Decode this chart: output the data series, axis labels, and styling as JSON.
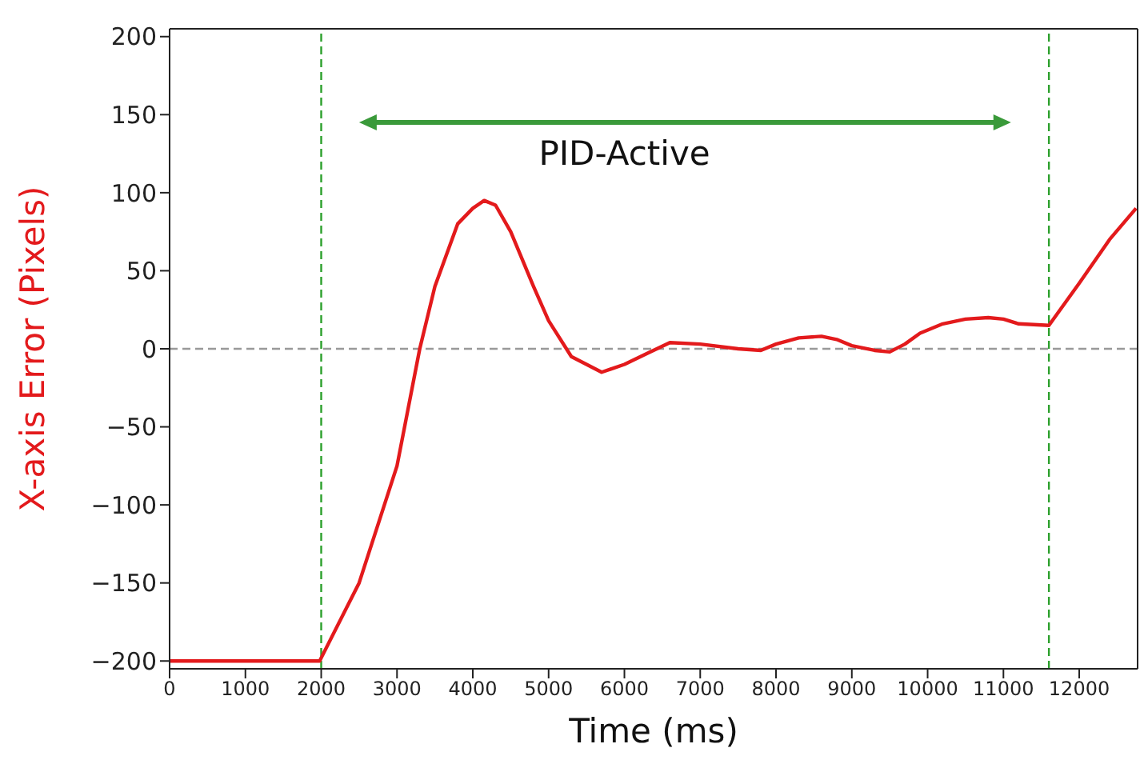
{
  "chart_data": {
    "type": "line",
    "xlabel": "Time (ms)",
    "ylabel": "X-axis Error (Pixels)",
    "x": [
      0,
      1980,
      2000,
      2500,
      3000,
      3300,
      3500,
      3800,
      4000,
      4150,
      4300,
      4500,
      4800,
      5000,
      5300,
      5700,
      6000,
      6300,
      6600,
      7000,
      7500,
      7800,
      8000,
      8300,
      8600,
      8800,
      9000,
      9300,
      9500,
      9700,
      9900,
      10200,
      10500,
      10800,
      11000,
      11200,
      11600,
      12000,
      12400,
      12750
    ],
    "series": [
      {
        "color": "#e31a1c",
        "values": [
          -200,
          -200,
          -198,
          -150,
          -75,
          0,
          40,
          80,
          90,
          95,
          92,
          75,
          40,
          18,
          -5,
          -15,
          -10,
          -3,
          4,
          3,
          0,
          -1,
          3,
          7,
          8,
          6,
          2,
          -1,
          -2,
          3,
          10,
          16,
          19,
          20,
          19,
          16,
          15,
          42,
          70,
          90
        ]
      }
    ],
    "xlim": [
      0,
      12770
    ],
    "xticks": [
      0,
      1000,
      2000,
      3000,
      4000,
      5000,
      6000,
      7000,
      8000,
      9000,
      10000,
      11000,
      12000
    ],
    "ylim": [
      -205,
      205
    ],
    "yticks": [
      -200,
      -150,
      -100,
      -50,
      0,
      50,
      100,
      150,
      200
    ],
    "ref_lines": [
      {
        "axis": "x",
        "value": 2000,
        "color": "#2ca02c",
        "line_style": "dashed"
      },
      {
        "axis": "x",
        "value": 11600,
        "color": "#2ca02c",
        "line_style": "dashed"
      },
      {
        "axis": "y",
        "value": 0,
        "color": "#999999",
        "line_style": "dashed"
      }
    ],
    "annotations": [
      "PID-Active"
    ],
    "marker": "none",
    "line_style": "solid"
  }
}
